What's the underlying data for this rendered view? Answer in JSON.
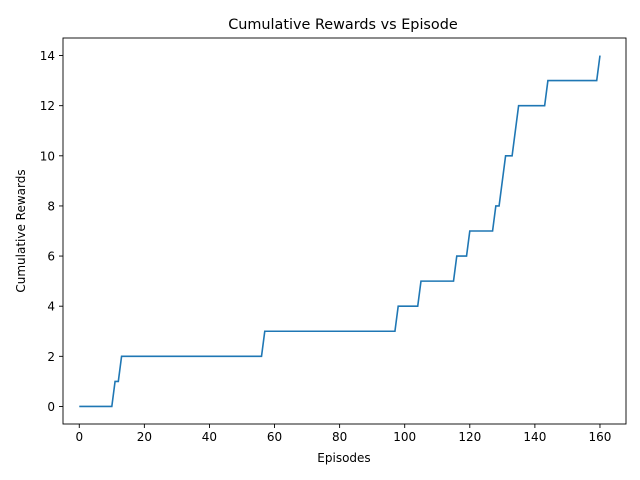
{
  "chart_data": {
    "type": "line",
    "title": "Cumulative Rewards vs Episode",
    "xlabel": "Episodes",
    "ylabel": "Cumulative Rewards",
    "xlim": [
      -5,
      168
    ],
    "ylim": [
      -0.7,
      14.7
    ],
    "xticks": [
      0,
      20,
      40,
      60,
      80,
      100,
      120,
      140,
      160
    ],
    "yticks": [
      0,
      2,
      4,
      6,
      8,
      10,
      12,
      14
    ],
    "grid": false,
    "line_color": "#1f77b4",
    "series": [
      {
        "x": [
          0,
          10,
          11,
          12,
          13,
          56,
          57,
          97,
          98,
          104,
          105,
          115,
          116,
          119,
          120,
          127,
          128,
          129,
          131,
          132,
          133,
          135,
          143,
          144,
          159,
          160
        ],
        "y": [
          0,
          0,
          1,
          1,
          2,
          2,
          3,
          3,
          4,
          4,
          5,
          5,
          6,
          6,
          7,
          7,
          8,
          8,
          10,
          10,
          10,
          12,
          12,
          13,
          13,
          14
        ]
      }
    ]
  }
}
